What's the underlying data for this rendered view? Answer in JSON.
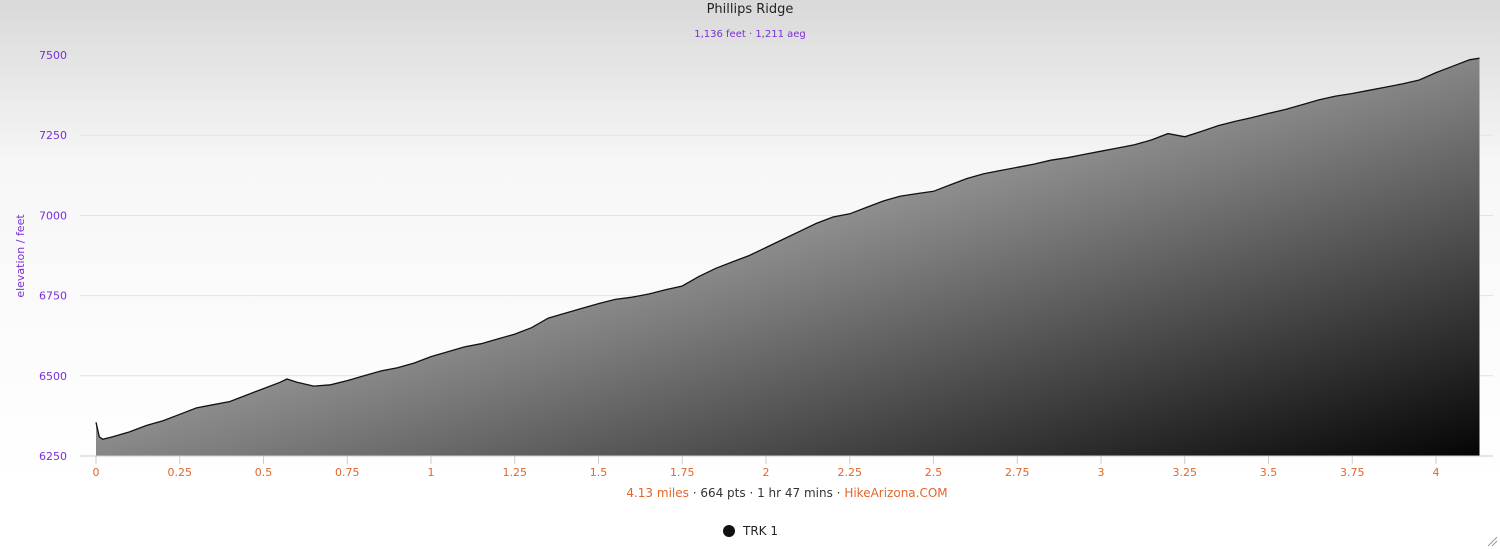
{
  "colors": {
    "purple": "#7b2fd6",
    "orange": "#e0662a",
    "line": "#111111"
  },
  "chart_data": {
    "type": "area",
    "title": "Phillips Ridge",
    "subtitle": "1,136 feet · 1,211 aeg",
    "ylabel": "elevation / feet",
    "xlabel": "",
    "xlim": [
      0,
      4.13
    ],
    "ylim": [
      6250,
      7500
    ],
    "yticks": [
      "6250",
      "6500",
      "6750",
      "7000",
      "7250",
      "7500"
    ],
    "xticks": [
      "0",
      "0.25",
      "0.5",
      "0.75",
      "1",
      "1.25",
      "1.5",
      "1.75",
      "2",
      "2.25",
      "2.5",
      "2.75",
      "3",
      "3.25",
      "3.5",
      "3.75",
      "4"
    ],
    "grid": true,
    "series": [
      {
        "name": "TRK 1",
        "x": [
          0,
          0.01,
          0.02,
          0.05,
          0.1,
          0.15,
          0.2,
          0.25,
          0.3,
          0.35,
          0.4,
          0.45,
          0.5,
          0.55,
          0.57,
          0.6,
          0.65,
          0.7,
          0.75,
          0.8,
          0.85,
          0.9,
          0.95,
          1.0,
          1.05,
          1.1,
          1.15,
          1.2,
          1.25,
          1.3,
          1.35,
          1.4,
          1.45,
          1.5,
          1.55,
          1.6,
          1.65,
          1.7,
          1.75,
          1.8,
          1.85,
          1.9,
          1.95,
          2.0,
          2.05,
          2.1,
          2.15,
          2.2,
          2.25,
          2.3,
          2.35,
          2.4,
          2.45,
          2.5,
          2.55,
          2.6,
          2.65,
          2.7,
          2.75,
          2.8,
          2.85,
          2.9,
          2.95,
          3.0,
          3.05,
          3.1,
          3.15,
          3.2,
          3.25,
          3.3,
          3.35,
          3.4,
          3.45,
          3.5,
          3.55,
          3.6,
          3.65,
          3.7,
          3.75,
          3.8,
          3.85,
          3.9,
          3.95,
          4.0,
          4.05,
          4.1,
          4.13
        ],
        "values": [
          6355,
          6310,
          6302,
          6310,
          6325,
          6345,
          6360,
          6380,
          6400,
          6410,
          6420,
          6440,
          6460,
          6480,
          6490,
          6480,
          6468,
          6472,
          6485,
          6500,
          6515,
          6525,
          6540,
          6560,
          6575,
          6590,
          6600,
          6615,
          6630,
          6650,
          6680,
          6695,
          6710,
          6725,
          6738,
          6745,
          6755,
          6768,
          6780,
          6810,
          6835,
          6855,
          6875,
          6900,
          6925,
          6950,
          6975,
          6995,
          7005,
          7025,
          7045,
          7060,
          7068,
          7075,
          7095,
          7115,
          7130,
          7140,
          7150,
          7160,
          7172,
          7180,
          7190,
          7200,
          7210,
          7220,
          7235,
          7255,
          7245,
          7262,
          7280,
          7293,
          7305,
          7318,
          7330,
          7345,
          7360,
          7372,
          7380,
          7390,
          7400,
          7410,
          7422,
          7445,
          7465,
          7485,
          7490
        ]
      }
    ]
  },
  "footer": {
    "distance": "4.13 miles",
    "sep1": " · ",
    "points": "664 pts",
    "sep2": " · ",
    "duration": "1 hr 47 mins",
    "sep3": " · ",
    "source": "HikeArizona.COM"
  },
  "legend": {
    "label": "TRK 1"
  }
}
